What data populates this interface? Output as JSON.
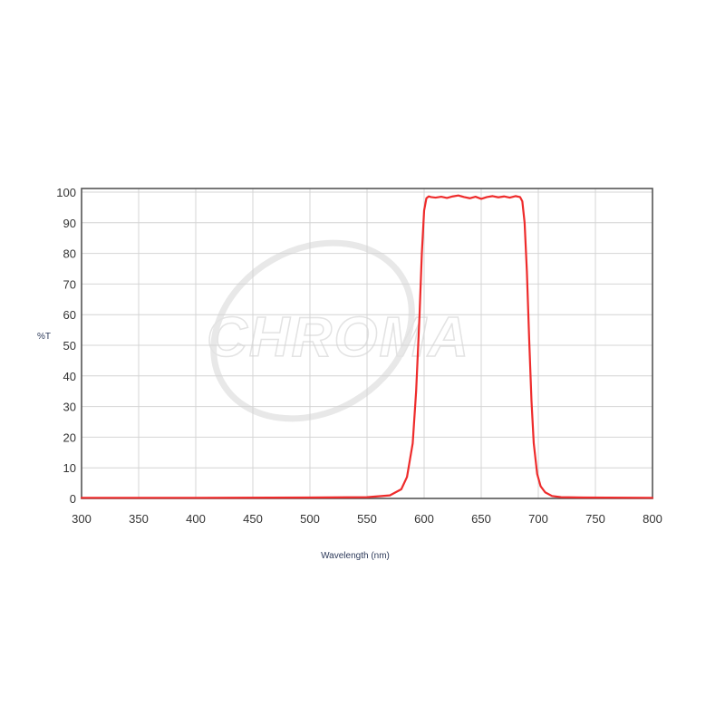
{
  "chart_data": {
    "type": "line",
    "title": "",
    "xlabel": "Wavelength (nm)",
    "ylabel": "%T",
    "xlim": [
      300,
      800
    ],
    "ylim": [
      0,
      100
    ],
    "x_ticks": [
      300,
      350,
      400,
      450,
      500,
      550,
      600,
      650,
      700,
      750,
      800
    ],
    "y_ticks": [
      0,
      10,
      20,
      30,
      40,
      50,
      60,
      70,
      80,
      90,
      100
    ],
    "grid": true,
    "legend": "none",
    "watermark": "CHROMA",
    "colors": {
      "series": "#ee2b2b",
      "grid": "#d4d4d4",
      "border": "#555555"
    },
    "series": [
      {
        "x": [
          300,
          400,
          500,
          550,
          570,
          580,
          585,
          590,
          593,
          596,
          598,
          600,
          602,
          604,
          606,
          610,
          615,
          620,
          625,
          630,
          635,
          640,
          645,
          650,
          655,
          660,
          665,
          670,
          675,
          680,
          684,
          686,
          688,
          690,
          692,
          694,
          696,
          699,
          702,
          706,
          712,
          720,
          740,
          800
        ],
        "y": [
          0.2,
          0.2,
          0.3,
          0.4,
          1,
          3,
          7,
          18,
          35,
          60,
          80,
          94,
          98,
          98.6,
          98.4,
          98.2,
          98.5,
          98.1,
          98.6,
          98.9,
          98.4,
          98,
          98.5,
          97.8,
          98.4,
          98.7,
          98.3,
          98.6,
          98.2,
          98.7,
          98.4,
          97,
          90,
          74,
          52,
          32,
          18,
          8,
          4,
          2,
          0.8,
          0.4,
          0.3,
          0.2
        ]
      }
    ]
  }
}
